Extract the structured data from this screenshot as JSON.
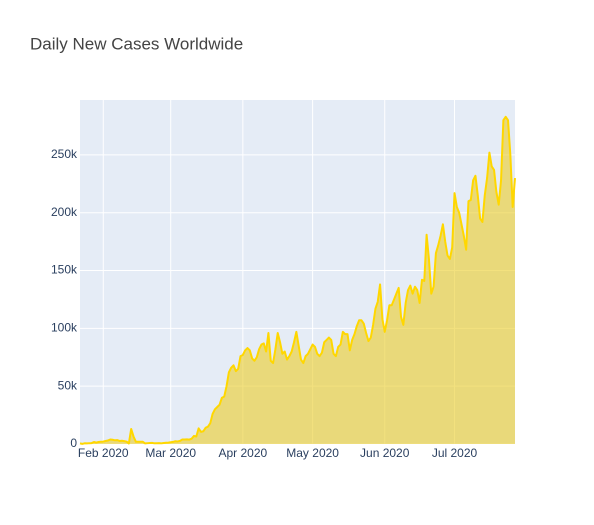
{
  "chart_data": {
    "type": "area",
    "title": "Daily New Cases Worldwide",
    "line_color": "#ffd700",
    "fill_color": "rgba(235, 205, 40, 0.6)",
    "grid": true,
    "xlim": [
      "2020-01-22",
      "2020-07-27"
    ],
    "xticks": [
      {
        "value": "2020-02-01",
        "label": "Feb 2020"
      },
      {
        "value": "2020-03-01",
        "label": "Mar 2020"
      },
      {
        "value": "2020-04-01",
        "label": "Apr 2020"
      },
      {
        "value": "2020-05-01",
        "label": "May 2020"
      },
      {
        "value": "2020-06-01",
        "label": "Jun 2020"
      },
      {
        "value": "2020-07-01",
        "label": "Jul 2020"
      }
    ],
    "ylim": [
      0,
      297500
    ],
    "yticks": [
      0,
      {
        "value": 50000,
        "label": "50k"
      },
      {
        "value": 100000,
        "label": "100k"
      },
      {
        "value": 150000,
        "label": "150k"
      },
      {
        "value": 200000,
        "label": "200k"
      },
      {
        "value": 250000,
        "label": "250k"
      }
    ],
    "x": [
      "2020-01-22",
      "2020-01-23",
      "2020-01-24",
      "2020-01-25",
      "2020-01-26",
      "2020-01-27",
      "2020-01-28",
      "2020-01-29",
      "2020-01-30",
      "2020-01-31",
      "2020-02-01",
      "2020-02-02",
      "2020-02-03",
      "2020-02-04",
      "2020-02-05",
      "2020-02-06",
      "2020-02-07",
      "2020-02-08",
      "2020-02-09",
      "2020-02-10",
      "2020-02-11",
      "2020-02-12",
      "2020-02-13",
      "2020-02-14",
      "2020-02-15",
      "2020-02-16",
      "2020-02-17",
      "2020-02-18",
      "2020-02-19",
      "2020-02-20",
      "2020-02-21",
      "2020-02-22",
      "2020-02-23",
      "2020-02-24",
      "2020-02-25",
      "2020-02-26",
      "2020-02-27",
      "2020-02-28",
      "2020-02-29",
      "2020-03-01",
      "2020-03-02",
      "2020-03-03",
      "2020-03-04",
      "2020-03-05",
      "2020-03-06",
      "2020-03-07",
      "2020-03-08",
      "2020-03-09",
      "2020-03-10",
      "2020-03-11",
      "2020-03-12",
      "2020-03-13",
      "2020-03-14",
      "2020-03-15",
      "2020-03-16",
      "2020-03-17",
      "2020-03-18",
      "2020-03-19",
      "2020-03-20",
      "2020-03-21",
      "2020-03-22",
      "2020-03-23",
      "2020-03-24",
      "2020-03-25",
      "2020-03-26",
      "2020-03-27",
      "2020-03-28",
      "2020-03-29",
      "2020-03-30",
      "2020-03-31",
      "2020-04-01",
      "2020-04-02",
      "2020-04-03",
      "2020-04-04",
      "2020-04-05",
      "2020-04-06",
      "2020-04-07",
      "2020-04-08",
      "2020-04-09",
      "2020-04-10",
      "2020-04-11",
      "2020-04-12",
      "2020-04-13",
      "2020-04-14",
      "2020-04-15",
      "2020-04-16",
      "2020-04-17",
      "2020-04-18",
      "2020-04-19",
      "2020-04-20",
      "2020-04-21",
      "2020-04-22",
      "2020-04-23",
      "2020-04-24",
      "2020-04-25",
      "2020-04-26",
      "2020-04-27",
      "2020-04-28",
      "2020-04-29",
      "2020-04-30",
      "2020-05-01",
      "2020-05-02",
      "2020-05-03",
      "2020-05-04",
      "2020-05-05",
      "2020-05-06",
      "2020-05-07",
      "2020-05-08",
      "2020-05-09",
      "2020-05-10",
      "2020-05-11",
      "2020-05-12",
      "2020-05-13",
      "2020-05-14",
      "2020-05-15",
      "2020-05-16",
      "2020-05-17",
      "2020-05-18",
      "2020-05-19",
      "2020-05-20",
      "2020-05-21",
      "2020-05-22",
      "2020-05-23",
      "2020-05-24",
      "2020-05-25",
      "2020-05-26",
      "2020-05-27",
      "2020-05-28",
      "2020-05-29",
      "2020-05-30",
      "2020-05-31",
      "2020-06-01",
      "2020-06-02",
      "2020-06-03",
      "2020-06-04",
      "2020-06-05",
      "2020-06-06",
      "2020-06-07",
      "2020-06-08",
      "2020-06-09",
      "2020-06-10",
      "2020-06-11",
      "2020-06-12",
      "2020-06-13",
      "2020-06-14",
      "2020-06-15",
      "2020-06-16",
      "2020-06-17",
      "2020-06-18",
      "2020-06-19",
      "2020-06-20",
      "2020-06-21",
      "2020-06-22",
      "2020-06-23",
      "2020-06-24",
      "2020-06-25",
      "2020-06-26",
      "2020-06-27",
      "2020-06-28",
      "2020-06-29",
      "2020-06-30",
      "2020-07-01",
      "2020-07-02",
      "2020-07-03",
      "2020-07-04",
      "2020-07-05",
      "2020-07-06",
      "2020-07-07",
      "2020-07-08",
      "2020-07-09",
      "2020-07-10",
      "2020-07-11",
      "2020-07-12",
      "2020-07-13",
      "2020-07-14",
      "2020-07-15",
      "2020-07-16",
      "2020-07-17",
      "2020-07-18",
      "2020-07-19",
      "2020-07-20",
      "2020-07-21",
      "2020-07-22",
      "2020-07-23",
      "2020-07-24",
      "2020-07-25",
      "2020-07-26",
      "2020-07-27"
    ],
    "values": [
      550,
      100,
      600,
      500,
      700,
      800,
      1700,
      1200,
      1700,
      2000,
      2100,
      2600,
      3000,
      3900,
      3700,
      3200,
      3400,
      2600,
      2800,
      2500,
      2100,
      400,
      13000,
      6500,
      2000,
      2000,
      2000,
      1900,
      500,
      700,
      900,
      1000,
      600,
      700,
      800,
      600,
      900,
      1100,
      1200,
      1500,
      1800,
      2400,
      2200,
      2700,
      3900,
      3900,
      4000,
      3800,
      4600,
      7000,
      6500,
      13500,
      10500,
      11000,
      14000,
      15000,
      18000,
      26000,
      30000,
      32000,
      34000,
      40000,
      41000,
      50000,
      62000,
      66000,
      68000,
      63000,
      65000,
      76000,
      77000,
      81000,
      83000,
      81000,
      74000,
      72000,
      75000,
      82000,
      86000,
      87000,
      80000,
      96000,
      72000,
      70000,
      82000,
      96000,
      88000,
      78000,
      80000,
      73000,
      76000,
      80000,
      88000,
      97000,
      85000,
      73000,
      70000,
      76000,
      78000,
      82000,
      86000,
      84000,
      78000,
      76000,
      79000,
      88000,
      90000,
      92000,
      90000,
      78000,
      76000,
      84000,
      86000,
      97000,
      95000,
      95000,
      81000,
      90000,
      95000,
      102000,
      107000,
      107000,
      104000,
      96000,
      89000,
      92000,
      103000,
      117000,
      123000,
      138000,
      108000,
      97000,
      107000,
      120000,
      120000,
      125000,
      130000,
      135000,
      110000,
      103000,
      122000,
      133000,
      137000,
      130000,
      136000,
      133000,
      122000,
      142000,
      141000,
      181000,
      160000,
      130000,
      136000,
      165000,
      172000,
      180000,
      190000,
      175000,
      163000,
      160000,
      170000,
      217000,
      205000,
      200000,
      190000,
      180000,
      168000,
      210000,
      211000,
      228000,
      232000,
      215000,
      195000,
      192000,
      215000,
      230000,
      252000,
      240000,
      237000,
      218000,
      207000,
      228000,
      280000,
      283000,
      280000,
      250000,
      205000,
      230000
    ]
  }
}
